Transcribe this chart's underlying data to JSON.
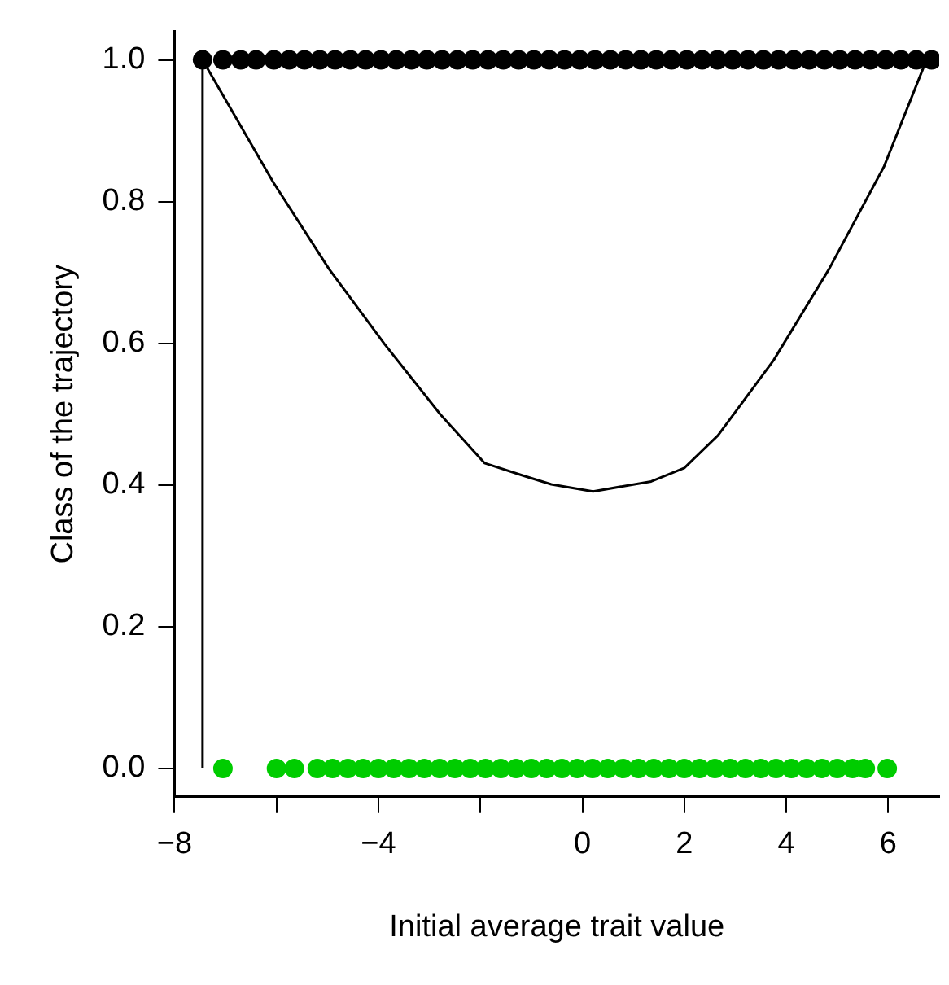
{
  "chart_data": {
    "type": "scatter",
    "xlabel": "Initial average trait value",
    "ylabel": "Class of the trajectory",
    "xlim": [
      -8,
      7
    ],
    "ylim": [
      -0.04,
      1.04
    ],
    "xticks": [
      {
        "value": -8,
        "label": "−8"
      },
      {
        "value": -6,
        "label": null
      },
      {
        "value": -4,
        "label": "−4"
      },
      {
        "value": -2,
        "label": null
      },
      0,
      2,
      4,
      6
    ],
    "yticks": [
      {
        "value": 0,
        "label": "0.0"
      },
      {
        "value": 0.2,
        "label": "0.2"
      },
      {
        "value": 0.4,
        "label": "0.4"
      },
      {
        "value": 0.6,
        "label": "0.6"
      },
      {
        "value": 0.8,
        "label": "0.8"
      },
      {
        "value": 1,
        "label": "1.0"
      }
    ],
    "grid": false,
    "legend": false,
    "marker": "circle",
    "series": [
      {
        "color": "#000000",
        "x": [
          -7.45,
          -7.05,
          -6.7,
          -6.4,
          -6.05,
          -5.75,
          -5.45,
          -5.15,
          -4.85,
          -4.55,
          -4.25,
          -3.95,
          -3.65,
          -3.35,
          -3.05,
          -2.75,
          -2.45,
          -2.15,
          -1.85,
          -1.55,
          -1.25,
          -0.95,
          -0.65,
          -0.35,
          -0.05,
          0.25,
          0.55,
          0.85,
          1.15,
          1.45,
          1.75,
          2.05,
          2.35,
          2.65,
          2.95,
          3.25,
          3.55,
          3.85,
          4.15,
          4.45,
          4.75,
          5.05,
          5.35,
          5.65,
          5.95,
          6.25,
          6.55,
          6.85
        ],
        "values": [
          1,
          1,
          1,
          1,
          1,
          1,
          1,
          1,
          1,
          1,
          1,
          1,
          1,
          1,
          1,
          1,
          1,
          1,
          1,
          1,
          1,
          1,
          1,
          1,
          1,
          1,
          1,
          1,
          1,
          1,
          1,
          1,
          1,
          1,
          1,
          1,
          1,
          1,
          1,
          1,
          1,
          1,
          1,
          1,
          1,
          1,
          1,
          1
        ]
      },
      {
        "color": "#00cc00",
        "x": [
          -7.05,
          -6.0,
          -5.65,
          -5.2,
          -4.9,
          -4.6,
          -4.3,
          -4.0,
          -3.7,
          -3.4,
          -3.1,
          -2.8,
          -2.5,
          -2.2,
          -1.9,
          -1.6,
          -1.3,
          -1.0,
          -0.7,
          -0.4,
          -0.1,
          0.2,
          0.5,
          0.8,
          1.1,
          1.4,
          1.7,
          2.0,
          2.3,
          2.6,
          2.9,
          3.2,
          3.5,
          3.8,
          4.1,
          4.4,
          4.7,
          5.0,
          5.3,
          5.55,
          5.98
        ],
        "values": [
          0,
          0,
          0,
          0,
          0,
          0,
          0,
          0,
          0,
          0,
          0,
          0,
          0,
          0,
          0,
          0,
          0,
          0,
          0,
          0,
          0,
          0,
          0,
          0,
          0,
          0,
          0,
          0,
          0,
          0,
          0,
          0,
          0,
          0,
          0,
          0,
          0,
          0,
          0,
          0,
          0
        ]
      },
      {
        "type": "line",
        "color": "#000000",
        "marker": "none",
        "x": [
          -7.45,
          -7.45,
          -6.06,
          -4.97,
          -3.88,
          -2.79,
          -1.92,
          -1.15,
          -0.61,
          0.21,
          1.35,
          2.0,
          2.66,
          3.75,
          4.84,
          5.92,
          6.75
        ],
        "values": [
          0,
          1,
          0.827,
          0.705,
          0.599,
          0.5,
          0.431,
          0.413,
          0.401,
          0.391,
          0.405,
          0.424,
          0.47,
          0.576,
          0.705,
          0.85,
          1
        ]
      }
    ]
  }
}
